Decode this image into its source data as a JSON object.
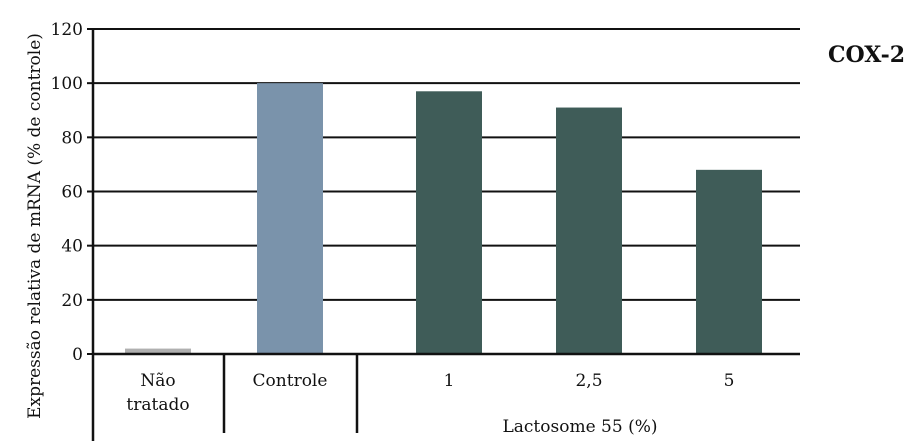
{
  "chart_data": {
    "type": "bar",
    "panel_label": "COX-2",
    "ylabel": "Expressão relativa de mRNA (% de controle)",
    "ylim": [
      0,
      120
    ],
    "yticks": [
      0,
      20,
      40,
      60,
      80,
      100,
      120
    ],
    "grid": true,
    "categories": [
      "Não tratado",
      "Controle",
      "1",
      "2,5",
      "5"
    ],
    "values": [
      2,
      100,
      97,
      91,
      68
    ],
    "bar_colors": [
      "#b0b0b0",
      "#7a93ab",
      "#3f5c58",
      "#3f5c58",
      "#3f5c58"
    ],
    "group_label": "Lactosome 55 (%)"
  }
}
